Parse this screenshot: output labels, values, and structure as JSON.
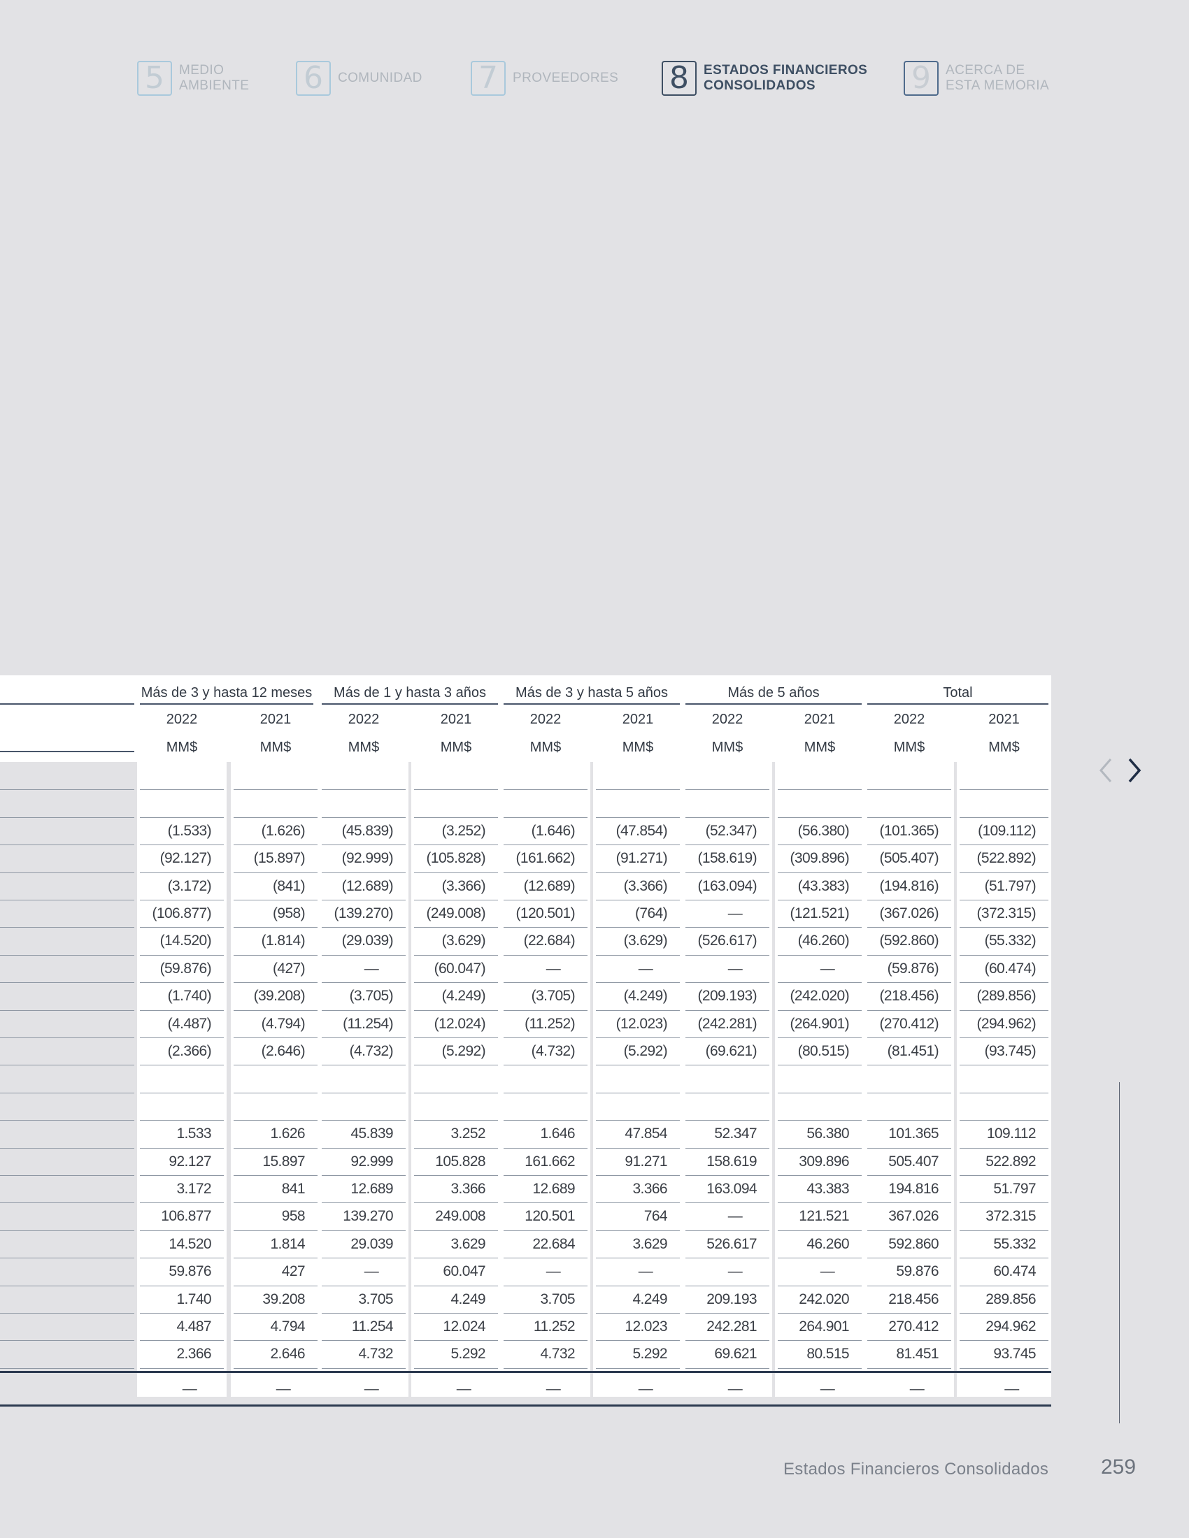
{
  "nav": {
    "items": [
      {
        "num": "5",
        "label1": "MEDIO",
        "label2": "AMBIENTE"
      },
      {
        "num": "6",
        "label1": "COMUNIDAD",
        "label2": ""
      },
      {
        "num": "7",
        "label1": "PROVEEDORES",
        "label2": ""
      },
      {
        "num": "8",
        "label1": "ESTADOS FINANCIEROS",
        "label2": "CONSOLIDADOS"
      },
      {
        "num": "9",
        "label1": "ACERCA DE",
        "label2": "ESTA MEMORIA"
      }
    ],
    "active_index": 3
  },
  "table": {
    "groups": [
      "Más de 3 y hasta 12 meses",
      "Más de 1 y hasta 3 años",
      "Más de 3 y hasta 5 años",
      "Más de 5 años",
      "Total"
    ],
    "years": [
      "2022",
      "2021",
      "2022",
      "2021",
      "2022",
      "2021",
      "2022",
      "2021",
      "2022",
      "2021"
    ],
    "units": [
      "MM$",
      "MM$",
      "MM$",
      "MM$",
      "MM$",
      "MM$",
      "MM$",
      "MM$",
      "MM$",
      "MM$"
    ],
    "rows": [
      [
        "",
        "",
        "",
        "",
        "",
        "",
        "",
        "",
        "",
        ""
      ],
      [
        "",
        "",
        "",
        "",
        "",
        "",
        "",
        "",
        "",
        ""
      ],
      [
        "(1.533)",
        "(1.626)",
        "(45.839)",
        "(3.252)",
        "(1.646)",
        "(47.854)",
        "(52.347)",
        "(56.380)",
        "(101.365)",
        "(109.112)"
      ],
      [
        "(92.127)",
        "(15.897)",
        "(92.999)",
        "(105.828)",
        "(161.662)",
        "(91.271)",
        "(158.619)",
        "(309.896)",
        "(505.407)",
        "(522.892)"
      ],
      [
        "(3.172)",
        "(841)",
        "(12.689)",
        "(3.366)",
        "(12.689)",
        "(3.366)",
        "(163.094)",
        "(43.383)",
        "(194.816)",
        "(51.797)"
      ],
      [
        "(106.877)",
        "(958)",
        "(139.270)",
        "(249.008)",
        "(120.501)",
        "(764)",
        "—",
        "(121.521)",
        "(367.026)",
        "(372.315)"
      ],
      [
        "(14.520)",
        "(1.814)",
        "(29.039)",
        "(3.629)",
        "(22.684)",
        "(3.629)",
        "(526.617)",
        "(46.260)",
        "(592.860)",
        "(55.332)"
      ],
      [
        "(59.876)",
        "(427)",
        "—",
        "(60.047)",
        "—",
        "—",
        "—",
        "—",
        "(59.876)",
        "(60.474)"
      ],
      [
        "(1.740)",
        "(39.208)",
        "(3.705)",
        "(4.249)",
        "(3.705)",
        "(4.249)",
        "(209.193)",
        "(242.020)",
        "(218.456)",
        "(289.856)"
      ],
      [
        "(4.487)",
        "(4.794)",
        "(11.254)",
        "(12.024)",
        "(11.252)",
        "(12.023)",
        "(242.281)",
        "(264.901)",
        "(270.412)",
        "(294.962)"
      ],
      [
        "(2.366)",
        "(2.646)",
        "(4.732)",
        "(5.292)",
        "(4.732)",
        "(5.292)",
        "(69.621)",
        "(80.515)",
        "(81.451)",
        "(93.745)"
      ],
      [
        "",
        "",
        "",
        "",
        "",
        "",
        "",
        "",
        "",
        ""
      ],
      [
        "",
        "",
        "",
        "",
        "",
        "",
        "",
        "",
        "",
        ""
      ],
      [
        "1.533",
        "1.626",
        "45.839",
        "3.252",
        "1.646",
        "47.854",
        "52.347",
        "56.380",
        "101.365",
        "109.112"
      ],
      [
        "92.127",
        "15.897",
        "92.999",
        "105.828",
        "161.662",
        "91.271",
        "158.619",
        "309.896",
        "505.407",
        "522.892"
      ],
      [
        "3.172",
        "841",
        "12.689",
        "3.366",
        "12.689",
        "3.366",
        "163.094",
        "43.383",
        "194.816",
        "51.797"
      ],
      [
        "106.877",
        "958",
        "139.270",
        "249.008",
        "120.501",
        "764",
        "—",
        "121.521",
        "367.026",
        "372.315"
      ],
      [
        "14.520",
        "1.814",
        "29.039",
        "3.629",
        "22.684",
        "3.629",
        "526.617",
        "46.260",
        "592.860",
        "55.332"
      ],
      [
        "59.876",
        "427",
        "—",
        "60.047",
        "—",
        "—",
        "—",
        "—",
        "59.876",
        "60.474"
      ],
      [
        "1.740",
        "39.208",
        "3.705",
        "4.249",
        "3.705",
        "4.249",
        "209.193",
        "242.020",
        "218.456",
        "289.856"
      ],
      [
        "4.487",
        "4.794",
        "11.254",
        "12.024",
        "11.252",
        "12.023",
        "242.281",
        "264.901",
        "270.412",
        "294.962"
      ],
      [
        "2.366",
        "2.646",
        "4.732",
        "5.292",
        "4.732",
        "5.292",
        "69.621",
        "80.515",
        "81.451",
        "93.745"
      ]
    ],
    "total_row": [
      "—",
      "—",
      "—",
      "—",
      "—",
      "—",
      "—",
      "—",
      "—",
      "—"
    ]
  },
  "icons": {
    "prev": "chevron-left-icon",
    "next": "chevron-right-icon"
  },
  "footer": {
    "section_title": "Estados Financieros Consolidados",
    "page_number": "259"
  }
}
